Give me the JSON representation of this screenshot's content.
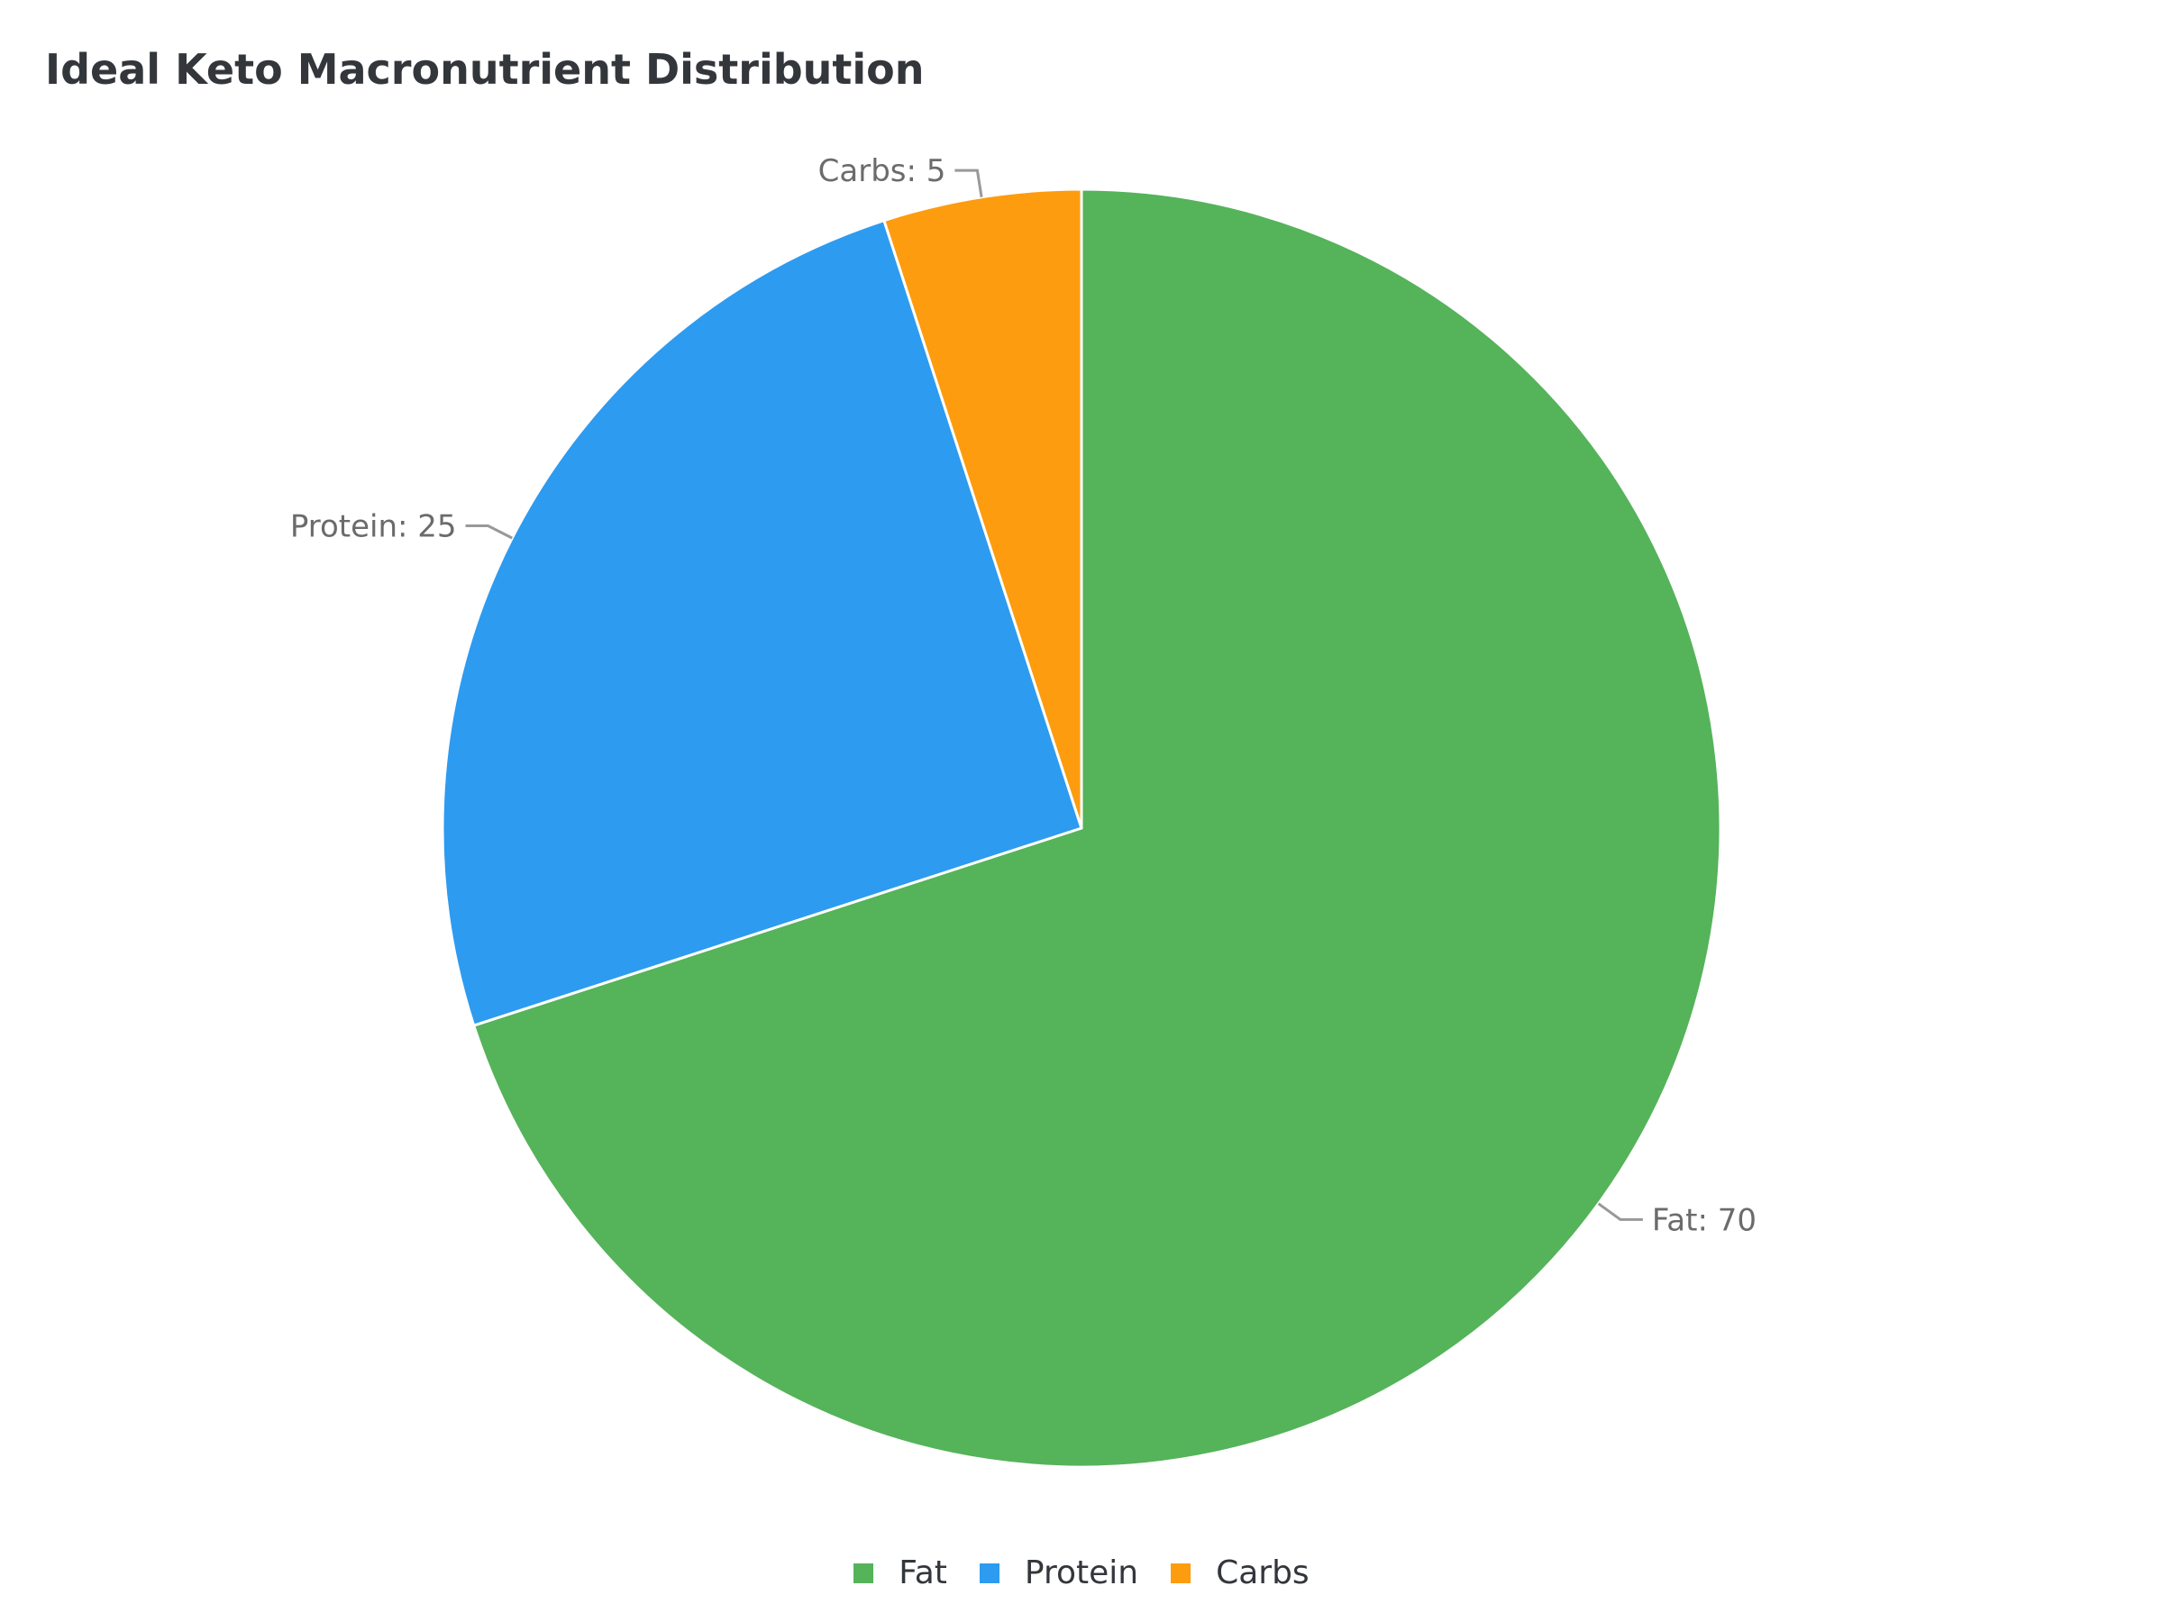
{
  "chart_data": {
    "type": "pie",
    "title": "Ideal Keto Macronutrient Distribution",
    "categories": [
      "Fat",
      "Protein",
      "Carbs"
    ],
    "values": [
      70,
      25,
      5
    ],
    "colors": [
      "#55b35a",
      "#2d9bf0",
      "#fd9c0f"
    ],
    "labels": [
      "Fat: 70",
      "Protein: 25",
      "Carbs: 5"
    ],
    "legend_position": "bottom",
    "start_angle_deg": 0,
    "direction": "clockwise"
  },
  "title": "Ideal Keto Macronutrient Distribution",
  "legend": [
    {
      "label": "Fat",
      "color": "#55b35a"
    },
    {
      "label": "Protein",
      "color": "#2d9bf0"
    },
    {
      "label": "Carbs",
      "color": "#fd9c0f"
    }
  ]
}
